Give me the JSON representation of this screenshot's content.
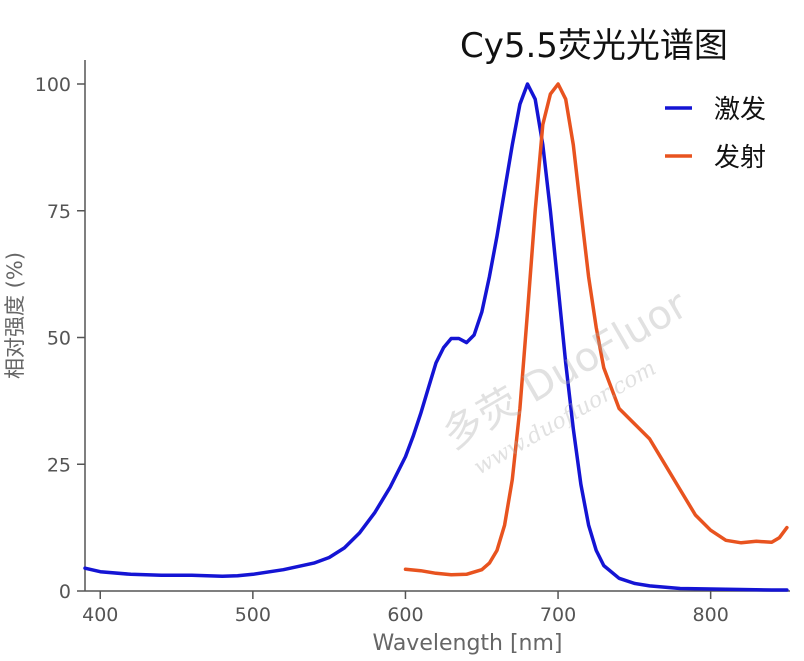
{
  "chart_data": {
    "type": "line",
    "title": "Cy5.5荧光光谱图",
    "xlabel": "Wavelength [nm]",
    "ylabel": "相对强度 (%)",
    "xlim": [
      390,
      852
    ],
    "ylim": [
      0,
      100
    ],
    "x_ticks": [
      "400",
      "500",
      "600",
      "700",
      "800"
    ],
    "y_ticks": [
      "0",
      "25",
      "50",
      "75",
      "100"
    ],
    "grid": false,
    "legend_position": "top-right",
    "series": [
      {
        "name": "激发",
        "color": "#1414d4",
        "x": [
          390,
          400,
          420,
          440,
          460,
          480,
          490,
          500,
          520,
          540,
          550,
          560,
          570,
          580,
          590,
          600,
          605,
          610,
          615,
          620,
          625,
          630,
          635,
          640,
          645,
          650,
          655,
          660,
          665,
          670,
          675,
          680,
          685,
          690,
          695,
          700,
          705,
          710,
          715,
          720,
          725,
          730,
          740,
          750,
          760,
          780,
          800,
          820,
          840,
          850
        ],
        "y": [
          4.5,
          3.8,
          3.3,
          3.1,
          3.1,
          2.9,
          3.0,
          3.3,
          4.2,
          5.5,
          6.6,
          8.5,
          11.5,
          15.5,
          20.5,
          26.5,
          30.5,
          35,
          40,
          45,
          48,
          49.8,
          49.8,
          49,
          50.5,
          55,
          62,
          70,
          79,
          88,
          96,
          100,
          97,
          88,
          75,
          60,
          45,
          32,
          21,
          13,
          8,
          5,
          2.5,
          1.5,
          1.0,
          0.5,
          0.4,
          0.3,
          0.2,
          0.2
        ]
      },
      {
        "name": "发射",
        "color": "#e8531f",
        "x": [
          600,
          610,
          620,
          630,
          640,
          650,
          655,
          660,
          665,
          670,
          675,
          680,
          685,
          690,
          695,
          700,
          705,
          710,
          715,
          720,
          725,
          730,
          740,
          750,
          760,
          770,
          780,
          790,
          800,
          810,
          820,
          830,
          840,
          845,
          850
        ],
        "y": [
          4.3,
          4.0,
          3.5,
          3.2,
          3.3,
          4.2,
          5.5,
          8,
          13,
          22,
          36,
          55,
          75,
          92,
          98,
          100,
          97,
          88,
          75,
          62,
          52,
          44,
          36,
          33,
          30,
          25,
          20,
          15,
          12,
          10,
          9.5,
          9.8,
          9.6,
          10.5,
          12.5
        ]
      }
    ]
  },
  "watermark": {
    "line1": "多荧 DuoFluor",
    "line2": "www.duofluor.com"
  }
}
